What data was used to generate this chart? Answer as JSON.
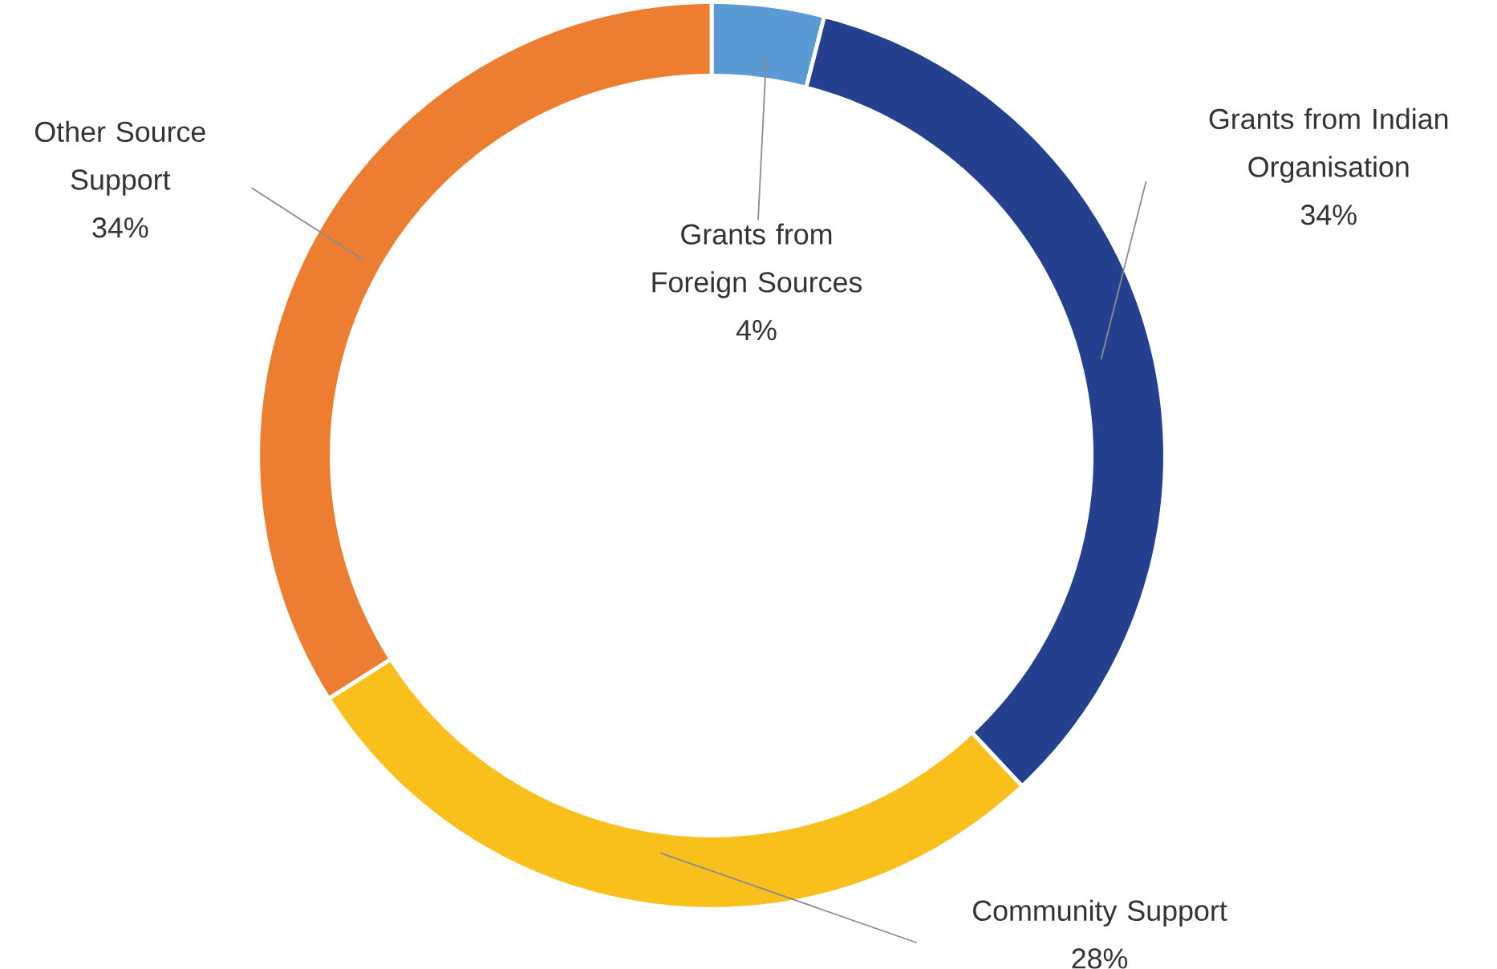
{
  "chart_data": {
    "type": "donut",
    "categories": [
      "Grants from Foreign Sources",
      "Grants from Indian Organisation",
      "Community Support",
      "Other Source Support"
    ],
    "values": [
      4,
      34,
      28,
      34
    ],
    "value_labels": [
      "4%",
      "34%",
      "28%",
      "34%"
    ],
    "colors": [
      "#5b9bd5",
      "#24408e",
      "#f9bf1b",
      "#ed7d31"
    ]
  }
}
